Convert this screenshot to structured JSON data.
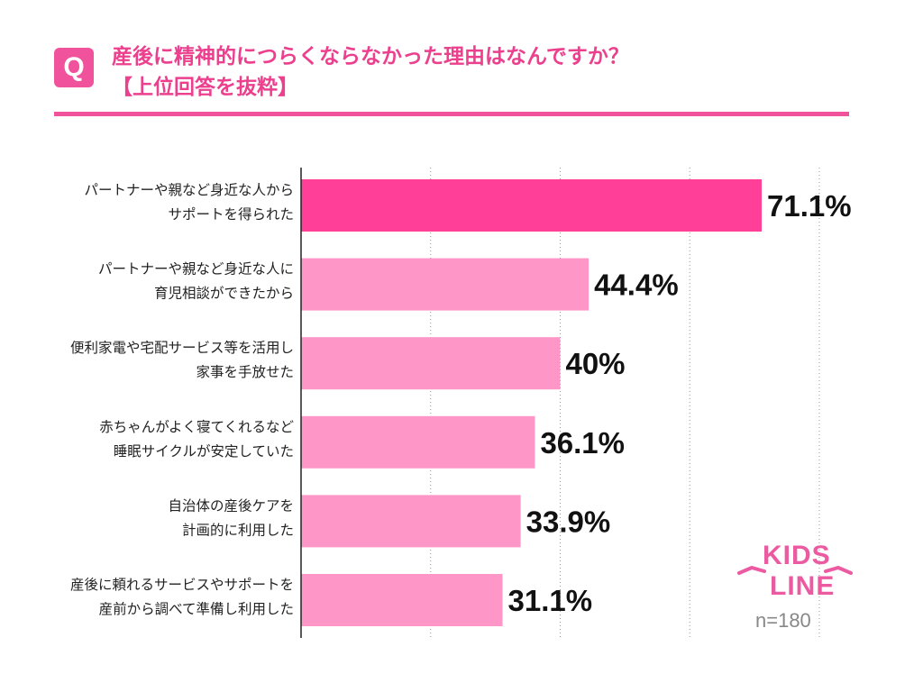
{
  "header": {
    "badge": "Q",
    "title_line1": "産後に精神的につらくならなかった理由はなんですか？",
    "title_line2": "【上位回答を抜粋】"
  },
  "chart_data": {
    "type": "bar",
    "orientation": "horizontal",
    "categories": [
      [
        "パートナーや親など身近な人から",
        "サポートを得られた"
      ],
      [
        "パートナーや親など身近な人に",
        "育児相談ができたから"
      ],
      [
        "便利家電や宅配サービス等を活用し",
        "家事を手放せた"
      ],
      [
        "赤ちゃんがよく寝てくれるなど",
        "睡眠サイクルが安定していた"
      ],
      [
        "自治体の産後ケアを",
        "計画的に利用した"
      ],
      [
        "産後に頼れるサービスやサポートを",
        "産前から調べて準備し利用した"
      ]
    ],
    "values": [
      71.1,
      44.4,
      40,
      36.1,
      33.9,
      31.1
    ],
    "value_labels": [
      "71.1%",
      "44.4%",
      "40%",
      "36.1%",
      "33.9%",
      "31.1%"
    ],
    "xlim": [
      0,
      80
    ],
    "grid": true,
    "colors": {
      "highlight": "#ff3f98",
      "bar": "#ff96c8"
    }
  },
  "brand": {
    "logo_line1": "KIDS",
    "logo_line2": "LINE",
    "logo_color": "#ec5aa2"
  },
  "sample": "n=180"
}
